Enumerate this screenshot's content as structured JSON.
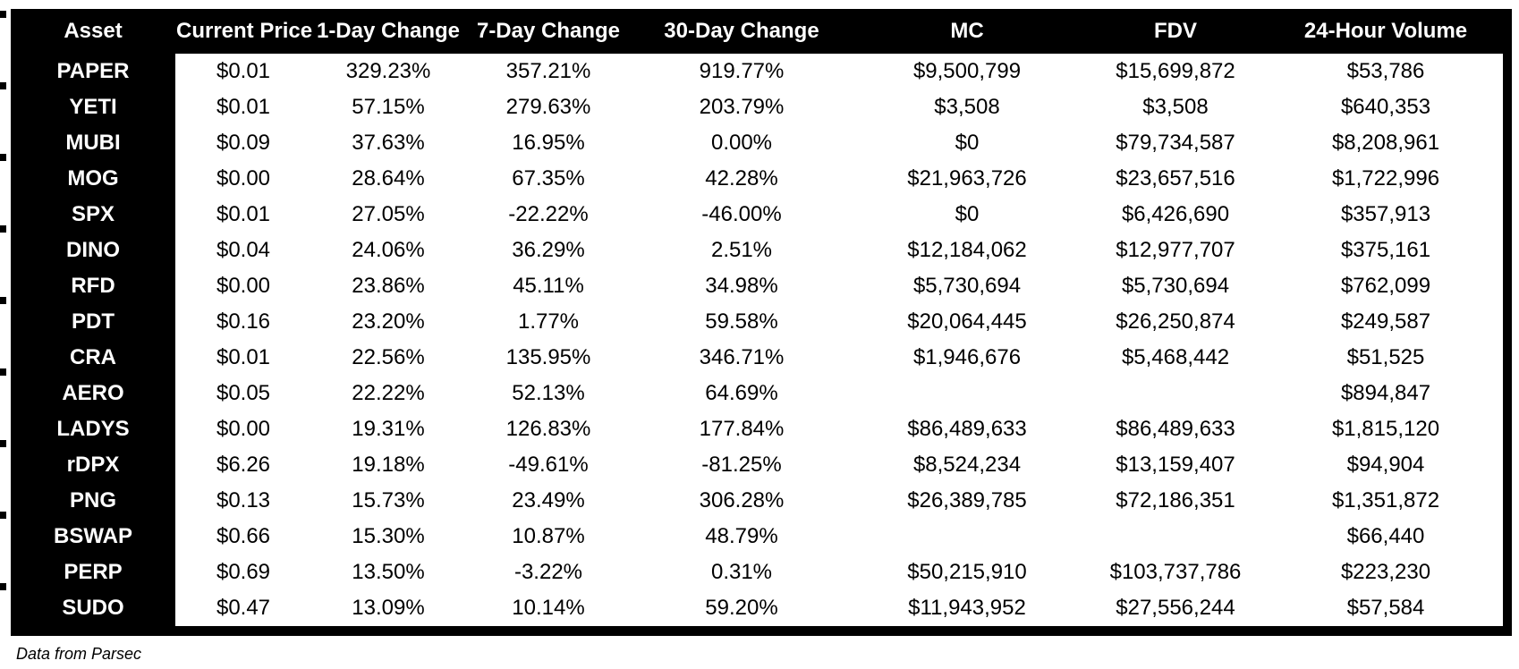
{
  "chart_data": {
    "type": "table",
    "columns": [
      "Asset",
      "Current Price",
      "1-Day Change",
      "7-Day Change",
      "30-Day Change",
      "MC",
      "FDV",
      "24-Hour Volume"
    ],
    "rows": [
      [
        "PAPER",
        "$0.01",
        "329.23%",
        "357.21%",
        "919.77%",
        "$9,500,799",
        "$15,699,872",
        "$53,786"
      ],
      [
        "YETI",
        "$0.01",
        "57.15%",
        "279.63%",
        "203.79%",
        "$3,508",
        "$3,508",
        "$640,353"
      ],
      [
        "MUBI",
        "$0.09",
        "37.63%",
        "16.95%",
        "0.00%",
        "$0",
        "$79,734,587",
        "$8,208,961"
      ],
      [
        "MOG",
        "$0.00",
        "28.64%",
        "67.35%",
        "42.28%",
        "$21,963,726",
        "$23,657,516",
        "$1,722,996"
      ],
      [
        "SPX",
        "$0.01",
        "27.05%",
        "-22.22%",
        "-46.00%",
        "$0",
        "$6,426,690",
        "$357,913"
      ],
      [
        "DINO",
        "$0.04",
        "24.06%",
        "36.29%",
        "2.51%",
        "$12,184,062",
        "$12,977,707",
        "$375,161"
      ],
      [
        "RFD",
        "$0.00",
        "23.86%",
        "45.11%",
        "34.98%",
        "$5,730,694",
        "$5,730,694",
        "$762,099"
      ],
      [
        "PDT",
        "$0.16",
        "23.20%",
        "1.77%",
        "59.58%",
        "$20,064,445",
        "$26,250,874",
        "$249,587"
      ],
      [
        "CRA",
        "$0.01",
        "22.56%",
        "135.95%",
        "346.71%",
        "$1,946,676",
        "$5,468,442",
        "$51,525"
      ],
      [
        "AERO",
        "$0.05",
        "22.22%",
        "52.13%",
        "64.69%",
        "",
        "",
        "$894,847"
      ],
      [
        "LADYS",
        "$0.00",
        "19.31%",
        "126.83%",
        "177.84%",
        "$86,489,633",
        "$86,489,633",
        "$1,815,120"
      ],
      [
        "rDPX",
        "$6.26",
        "19.18%",
        "-49.61%",
        "-81.25%",
        "$8,524,234",
        "$13,159,407",
        "$94,904"
      ],
      [
        "PNG",
        "$0.13",
        "15.73%",
        "23.49%",
        "306.28%",
        "$26,389,785",
        "$72,186,351",
        "$1,351,872"
      ],
      [
        "BSWAP",
        "$0.66",
        "15.30%",
        "10.87%",
        "48.79%",
        "",
        "",
        "$66,440"
      ],
      [
        "PERP",
        "$0.69",
        "13.50%",
        "-3.22%",
        "0.31%",
        "$50,215,910",
        "$103,737,786",
        "$223,230"
      ],
      [
        "SUDO",
        "$0.47",
        "13.09%",
        "10.14%",
        "59.20%",
        "$11,943,952",
        "$27,556,244",
        "$57,584"
      ]
    ],
    "title": "",
    "legend_position": "none",
    "grid": false
  },
  "footer": {
    "note": "Data from Parsec"
  },
  "colors": {
    "table_bg": "#000000",
    "header_text": "#ffffff",
    "cell_bg": "#ffffff",
    "cell_text": "#000000"
  }
}
